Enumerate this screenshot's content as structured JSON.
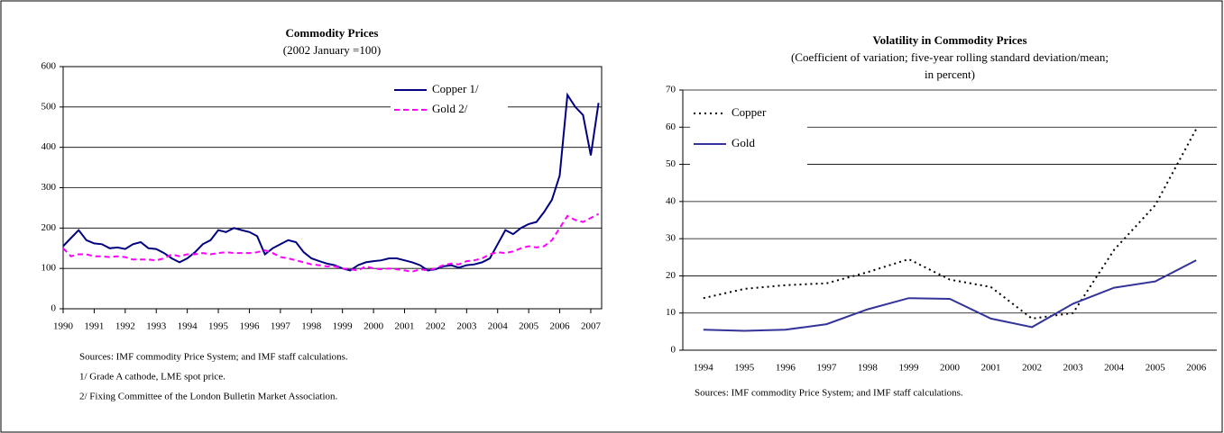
{
  "chart_data": [
    {
      "type": "line",
      "title": "Commodity Prices",
      "subtitle": [
        "(2002 January =100)"
      ],
      "x": [
        1990,
        1990.25,
        1990.5,
        1990.75,
        1991,
        1991.25,
        1991.5,
        1991.75,
        1992,
        1992.25,
        1992.5,
        1992.75,
        1993,
        1993.25,
        1993.5,
        1993.75,
        1994,
        1994.25,
        1994.5,
        1994.75,
        1995,
        1995.25,
        1995.5,
        1995.75,
        1996,
        1996.25,
        1996.5,
        1996.75,
        1997,
        1997.25,
        1997.5,
        1997.75,
        1998,
        1998.25,
        1998.5,
        1998.75,
        1999,
        1999.25,
        1999.5,
        1999.75,
        2000,
        2000.25,
        2000.5,
        2000.75,
        2001,
        2001.25,
        2001.5,
        2001.75,
        2002,
        2002.25,
        2002.5,
        2002.75,
        2003,
        2003.25,
        2003.5,
        2003.75,
        2004,
        2004.25,
        2004.5,
        2004.75,
        2005,
        2005.25,
        2005.5,
        2005.75,
        2006,
        2006.25,
        2006.5,
        2006.75,
        2007,
        2007.25
      ],
      "series": [
        {
          "name": "Copper 1/",
          "color": "#000080",
          "dash": "solid",
          "values": [
            155,
            175,
            195,
            170,
            162,
            160,
            150,
            152,
            148,
            160,
            165,
            150,
            148,
            138,
            125,
            115,
            125,
            140,
            160,
            170,
            195,
            190,
            200,
            195,
            190,
            180,
            135,
            150,
            160,
            170,
            165,
            140,
            125,
            118,
            112,
            108,
            100,
            95,
            108,
            115,
            118,
            120,
            125,
            125,
            120,
            115,
            108,
            95,
            98,
            105,
            108,
            102,
            108,
            110,
            115,
            125,
            160,
            195,
            185,
            200,
            210,
            215,
            240,
            270,
            330,
            530,
            500,
            480,
            380,
            510
          ]
        },
        {
          "name": "Gold 2/",
          "color": "#ff00ff",
          "dash": "dashed",
          "values": [
            150,
            130,
            135,
            135,
            130,
            130,
            128,
            130,
            128,
            122,
            122,
            122,
            120,
            125,
            135,
            130,
            135,
            135,
            138,
            135,
            138,
            140,
            138,
            138,
            138,
            140,
            145,
            138,
            128,
            125,
            120,
            115,
            110,
            108,
            105,
            105,
            100,
            98,
            95,
            105,
            100,
            98,
            100,
            98,
            95,
            92,
            98,
            95,
            100,
            108,
            112,
            110,
            118,
            120,
            125,
            135,
            140,
            138,
            142,
            150,
            155,
            152,
            155,
            170,
            200,
            230,
            220,
            215,
            225,
            235
          ]
        }
      ],
      "xlim": [
        1990,
        2007.35
      ],
      "xticks": [
        1990,
        1991,
        1992,
        1993,
        1994,
        1995,
        1996,
        1997,
        1998,
        1999,
        2000,
        2001,
        2002,
        2003,
        2004,
        2005,
        2006,
        2007
      ],
      "ylim": [
        0,
        600
      ],
      "yticks": [
        0,
        100,
        200,
        300,
        400,
        500,
        600
      ],
      "grid": true,
      "legend": "upper right",
      "notes": [
        "Sources: IMF commodity Price System; and IMF staff calculations.",
        "1/ Grade A cathode, LME spot price.",
        "2/ Fixing Committee of the London Bulletin Market Association."
      ]
    },
    {
      "type": "line",
      "title": "Volatility in Commodity Prices",
      "subtitle": [
        "(Coefficient of variation; five-year rolling standard deviation/mean;",
        "in percent)"
      ],
      "categories": [
        "1994",
        "1995",
        "1996",
        "1997",
        "1998",
        "1999",
        "2000",
        "2001",
        "2002",
        "2003",
        "2004",
        "2005",
        "2006"
      ],
      "series": [
        {
          "name": "Copper",
          "color": "#000000",
          "dash": "dotted",
          "values": [
            14,
            16.5,
            17.5,
            18,
            21,
            24.5,
            19,
            17,
            8.5,
            10,
            27,
            39,
            59.5
          ]
        },
        {
          "name": "Gold",
          "color": "#333399",
          "dash": "solid",
          "values": [
            5.5,
            5.2,
            5.5,
            7,
            11,
            14,
            13.8,
            8.5,
            6.2,
            12.5,
            16.8,
            18.5,
            24.2
          ]
        }
      ],
      "ylim": [
        0,
        70
      ],
      "yticks": [
        0,
        10,
        20,
        30,
        40,
        50,
        60,
        70
      ],
      "grid": true,
      "legend": "upper left",
      "notes": [
        "Sources: IMF commodity Price System; and IMF staff calculations."
      ]
    }
  ]
}
